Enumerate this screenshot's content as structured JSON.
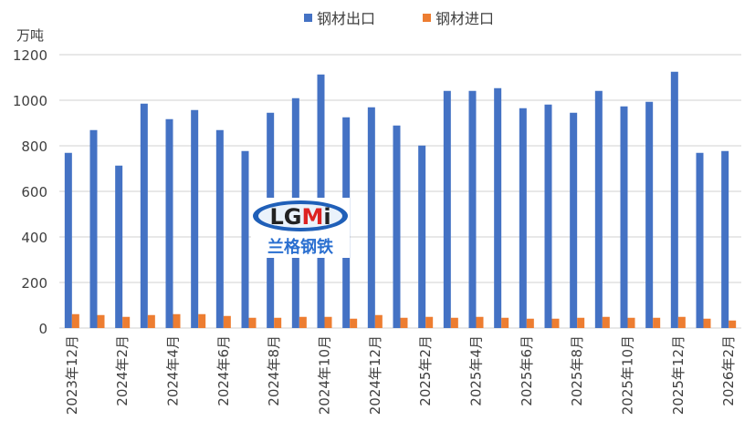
{
  "chart_data": {
    "type": "bar",
    "ylabel": "万吨",
    "ylim": [
      0,
      1200
    ],
    "yticks": [
      0,
      200,
      400,
      600,
      800,
      1000,
      1200
    ],
    "grid": true,
    "legend_position": "top",
    "categories": [
      "2023年12月",
      "2024年1月",
      "2024年2月",
      "2024年3月",
      "2024年4月",
      "2024年5月",
      "2024年6月",
      "2024年7月",
      "2024年8月",
      "2024年9月",
      "2024年10月",
      "2024年11月",
      "2024年12月",
      "2025年1月",
      "2025年2月",
      "2025年3月",
      "2025年4月",
      "2025年5月",
      "2025年6月",
      "2025年7月",
      "2025年8月",
      "2025年9月",
      "2025年10月",
      "2025年11月",
      "2025年12月",
      "2026年1月",
      "2026年2月"
    ],
    "shown_tick_labels": [
      "2023年12月",
      "2024年2月",
      "2024年4月",
      "2024年6月",
      "2024年8月",
      "2024年10月",
      "2024年12月",
      "2025年2月",
      "2025年4月",
      "2025年6月",
      "2025年8月",
      "2025年10月",
      "2025年12月",
      "2026年2月"
    ],
    "series": [
      {
        "name": "钢材出口",
        "color": "#4472C4",
        "values": [
          769,
          869,
          713,
          985,
          917,
          957,
          869,
          777,
          945,
          1009,
          1113,
          925,
          969,
          889,
          801,
          1041,
          1041,
          1053,
          965,
          981,
          945,
          1041,
          973,
          993,
          1125,
          769,
          777
        ]
      },
      {
        "name": "钢材进口",
        "color": "#ED7D31",
        "values": [
          61,
          57,
          49,
          57,
          61,
          61,
          53,
          45,
          45,
          49,
          49,
          41,
          57,
          45,
          49,
          45,
          49,
          45,
          41,
          41,
          45,
          49,
          45,
          45,
          49,
          41,
          33
        ]
      }
    ]
  },
  "watermark": {
    "logo_text": "LGMi",
    "subtitle": "兰格钢铁"
  }
}
